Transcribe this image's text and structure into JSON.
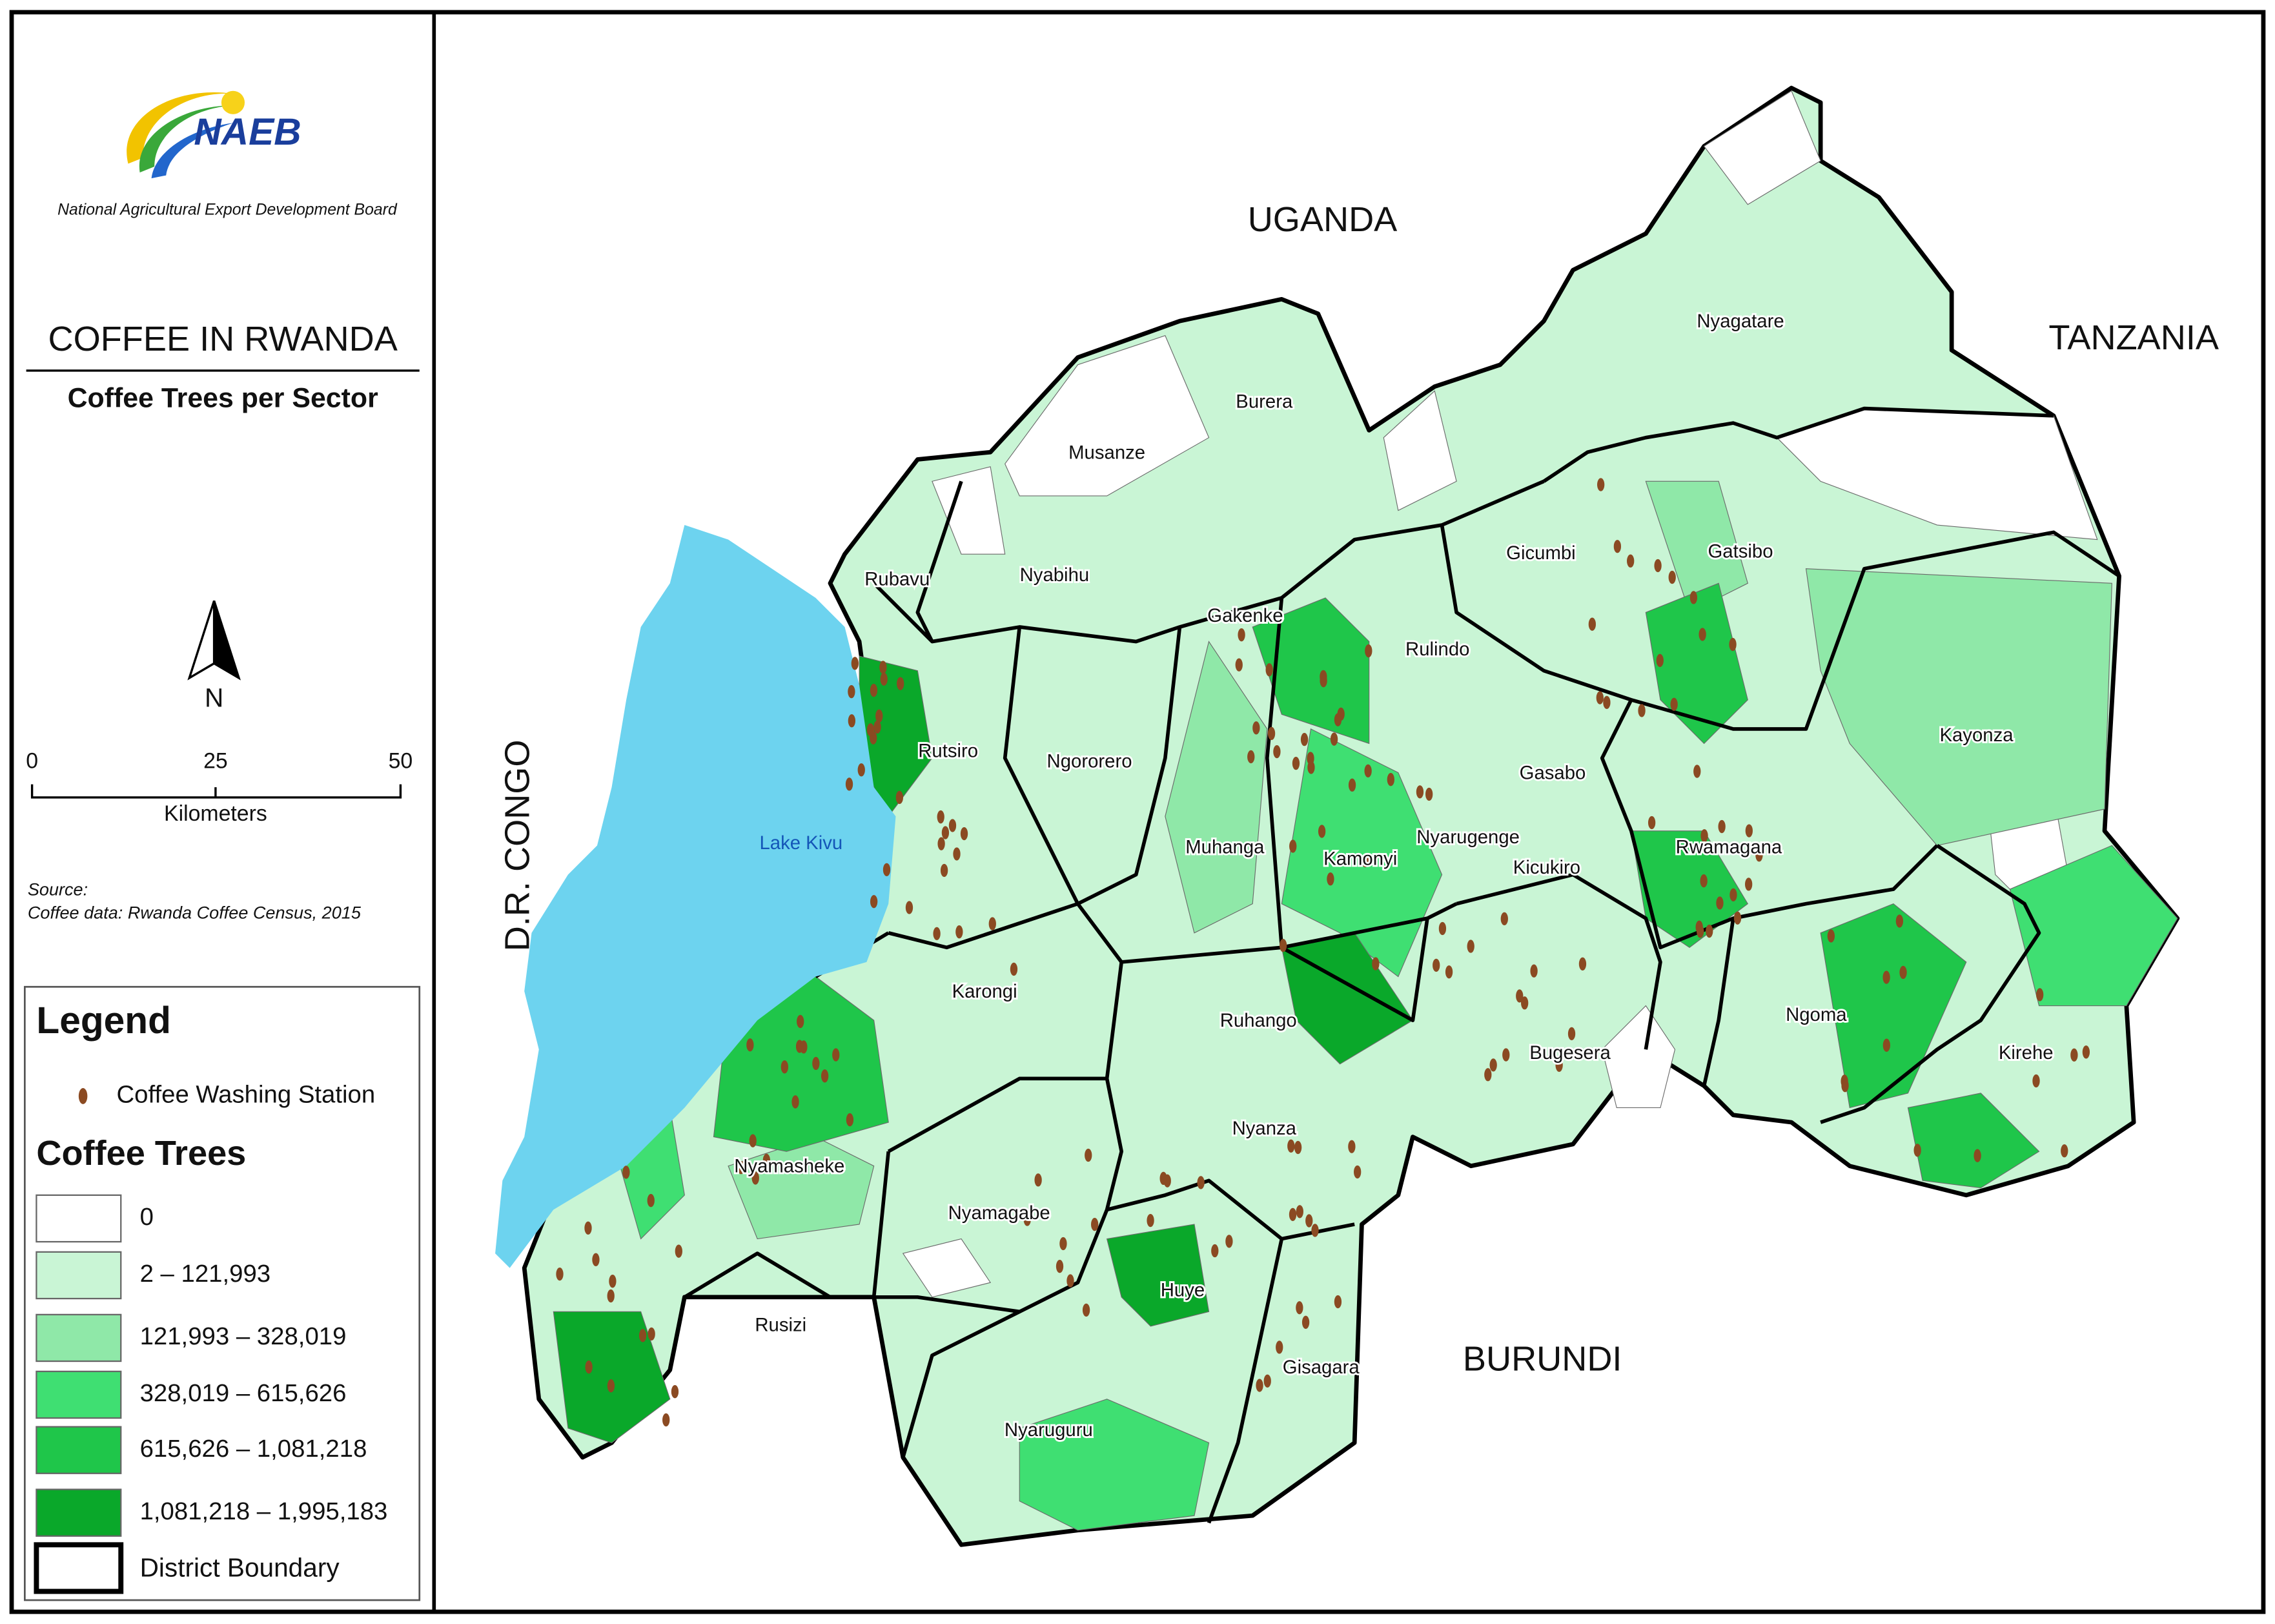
{
  "sidebar": {
    "logo_text": "NAEB",
    "org": "National Agricultural Export Development Board",
    "title": "COFFEE IN RWANDA",
    "subtitle": "Coffee Trees per Sector",
    "north": "N",
    "scale_labels": [
      "0",
      "25",
      "50"
    ],
    "scale_unit": "Kilometers",
    "source_label": "Source:",
    "source_text": "Coffee data: Rwanda Coffee Census, 2015"
  },
  "legend": {
    "title": "Legend",
    "station": "Coffee Washing Station",
    "classes_title": "Coffee Trees",
    "classes": [
      {
        "label": "0",
        "color": "#ffffff"
      },
      {
        "label": "2 – 121,993",
        "color": "#c9f5d5"
      },
      {
        "label": "121,993 – 328,019",
        "color": "#8fe8a8"
      },
      {
        "label": "328,019 – 615,626",
        "color": "#3fdf72"
      },
      {
        "label": "615,626 – 1,081,218",
        "color": "#1fc64a"
      },
      {
        "label": "1,081,218 – 1,995,183",
        "color": "#0aa82a"
      }
    ],
    "boundary": "District Boundary"
  },
  "map": {
    "countries": [
      "UGANDA",
      "TANZANIA",
      "BURUNDI",
      "D.R. CONGO"
    ],
    "lake": "Lake Kivu",
    "districts": [
      "Nyagatare",
      "Gatsibo",
      "Kayonza",
      "Gicumbi",
      "Burera",
      "Musanze",
      "Rubavu",
      "Nyabihu",
      "Gakenke",
      "Rulindo",
      "Ngororero",
      "Rutsiro",
      "Gasabo",
      "Muhanga",
      "Kamonyi",
      "Nyarugenge",
      "Kicukiro",
      "Rwamagana",
      "Karongi",
      "Ruhango",
      "Bugesera",
      "Ngoma",
      "Kirehe",
      "Nyanza",
      "Nyamasheke",
      "Nyamagabe",
      "Huye",
      "Rusizi",
      "Gisagara",
      "Nyaruguru"
    ]
  }
}
